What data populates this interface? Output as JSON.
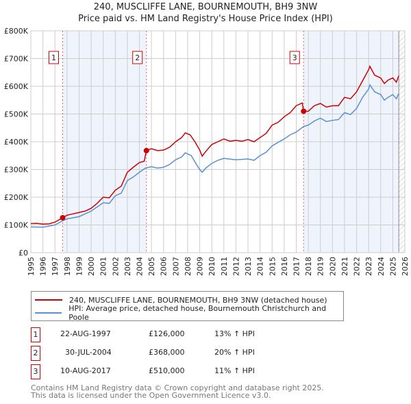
{
  "chart_data": {
    "type": "line",
    "title": "240, MUSCLIFFE LANE, BOURNEMOUTH, BH9 3NW",
    "subtitle": "Price paid vs. HM Land Registry's House Price Index (HPI)",
    "xlim": [
      1995,
      2026
    ],
    "ylim": [
      0,
      800000
    ],
    "x_ticks": [
      "1995",
      "1996",
      "1997",
      "1998",
      "1999",
      "2000",
      "2001",
      "2002",
      "2003",
      "2004",
      "2005",
      "2006",
      "2007",
      "2008",
      "2009",
      "2010",
      "2011",
      "2012",
      "2013",
      "2014",
      "2015",
      "2016",
      "2017",
      "2018",
      "2019",
      "2020",
      "2021",
      "2022",
      "2023",
      "2024",
      "2025",
      "2026"
    ],
    "y_ticks": [
      {
        "v": 0,
        "label": "£0"
      },
      {
        "v": 100000,
        "label": "£100K"
      },
      {
        "v": 200000,
        "label": "£200K"
      },
      {
        "v": 300000,
        "label": "£300K"
      },
      {
        "v": 400000,
        "label": "£400K"
      },
      {
        "v": 500000,
        "label": "£500K"
      },
      {
        "v": 600000,
        "label": "£600K"
      },
      {
        "v": 700000,
        "label": "£700K"
      },
      {
        "v": 800000,
        "label": "£800K"
      }
    ],
    "grid": true,
    "shaded_ranges": [
      [
        1997.64,
        2004.58
      ],
      [
        2017.61,
        2025.5
      ]
    ],
    "hatched_from": 2025.5,
    "series": [
      {
        "name": "240, MUSCLIFFE LANE, BOURNEMOUTH, BH9 3NW (detached house)",
        "color": "#cc0000",
        "x": [
          1995,
          1995.5,
          1996,
          1996.5,
          1997,
          1997.64,
          1998,
          1998.5,
          1999,
          1999.5,
          2000,
          2000.5,
          2001,
          2001.5,
          2002,
          2002.5,
          2003,
          2003.5,
          2004,
          2004.4,
          2004.58,
          2005,
          2005.5,
          2006,
          2006.5,
          2007,
          2007.5,
          2007.8,
          2008.2,
          2008.6,
          2009,
          2009.2,
          2009.5,
          2010,
          2010.5,
          2011,
          2011.5,
          2012,
          2012.5,
          2013,
          2013.5,
          2014,
          2014.5,
          2015,
          2015.5,
          2016,
          2016.5,
          2017,
          2017.5,
          2017.61,
          2018,
          2018.5,
          2019,
          2019.5,
          2020,
          2020.5,
          2021,
          2021.5,
          2022,
          2022.5,
          2023,
          2023.1,
          2023.5,
          2024,
          2024.3,
          2024.6,
          2025,
          2025.3,
          2025.5
        ],
        "y": [
          105000,
          106000,
          103000,
          104000,
          110000,
          126000,
          135000,
          140000,
          145000,
          150000,
          160000,
          178000,
          200000,
          198000,
          225000,
          240000,
          290000,
          308000,
          325000,
          330000,
          368000,
          375000,
          368000,
          370000,
          380000,
          400000,
          415000,
          432000,
          425000,
          400000,
          370000,
          348000,
          365000,
          390000,
          400000,
          410000,
          402000,
          405000,
          402000,
          408000,
          400000,
          415000,
          430000,
          460000,
          470000,
          490000,
          505000,
          530000,
          540000,
          510000,
          510000,
          530000,
          538000,
          525000,
          530000,
          530000,
          560000,
          555000,
          580000,
          620000,
          660000,
          672000,
          640000,
          630000,
          610000,
          622000,
          630000,
          615000,
          638000
        ]
      },
      {
        "name": "HPI: Average price, detached house, Bournemouth Christchurch and Poole",
        "color": "#5b8fd4",
        "x": [
          1995,
          1996,
          1997,
          1997.64,
          1998,
          1999,
          2000,
          2001,
          2001.5,
          2002,
          2002.5,
          2003,
          2003.5,
          2004,
          2004.5,
          2005,
          2005.5,
          2006,
          2006.5,
          2007,
          2007.5,
          2007.8,
          2008.3,
          2008.7,
          2009,
          2009.2,
          2009.5,
          2010,
          2010.5,
          2011,
          2012,
          2013,
          2013.5,
          2014,
          2014.5,
          2015,
          2015.5,
          2016,
          2016.5,
          2017,
          2017.61,
          2018,
          2018.5,
          2019,
          2019.5,
          2020,
          2020.5,
          2021,
          2021.5,
          2022,
          2022.5,
          2023,
          2023.1,
          2023.5,
          2024,
          2024.3,
          2024.6,
          2025,
          2025.3,
          2025.5
        ],
        "y": [
          93000,
          92000,
          100000,
          115000,
          122000,
          130000,
          150000,
          180000,
          178000,
          205000,
          215000,
          260000,
          273000,
          290000,
          305000,
          310000,
          305000,
          308000,
          318000,
          335000,
          345000,
          360000,
          350000,
          320000,
          300000,
          290000,
          305000,
          322000,
          333000,
          340000,
          335000,
          338000,
          333000,
          350000,
          362000,
          385000,
          398000,
          410000,
          425000,
          435000,
          455000,
          460000,
          475000,
          485000,
          473000,
          477000,
          480000,
          505000,
          498000,
          520000,
          560000,
          590000,
          605000,
          580000,
          570000,
          550000,
          560000,
          570000,
          555000,
          575000
        ]
      }
    ],
    "sales": [
      {
        "label": "1",
        "x": 1997.64,
        "y": 126000,
        "date": "22-AUG-1997",
        "price": "£126,000",
        "hpi": "13% ↑ HPI"
      },
      {
        "label": "2",
        "x": 2004.58,
        "y": 368000,
        "date": "30-JUL-2004",
        "price": "£368,000",
        "hpi": "20% ↑ HPI"
      },
      {
        "label": "3",
        "x": 2017.61,
        "y": 510000,
        "date": "10-AUG-2017",
        "price": "£510,000",
        "hpi": "11% ↑ HPI"
      }
    ],
    "legend_placement": "below"
  },
  "footer": [
    "Contains HM Land Registry data © Crown copyright and database right 2025.",
    "This data is licensed under the Open Government Licence v3.0."
  ]
}
